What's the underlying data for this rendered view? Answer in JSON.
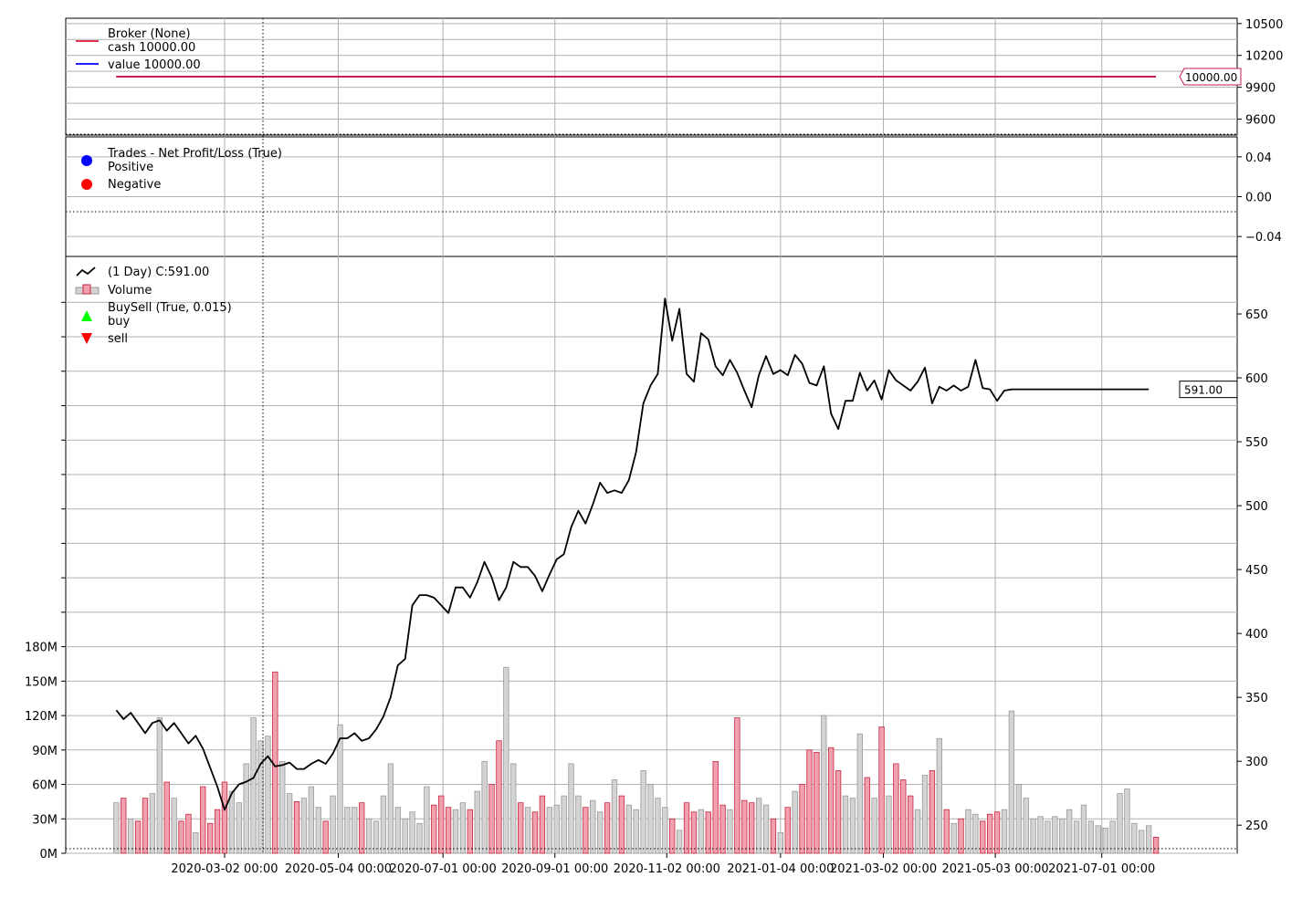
{
  "chart_data": [
    {
      "type": "line",
      "panel": "broker",
      "legend": {
        "placement": "top-left",
        "title": "Broker (None)",
        "entries": [
          {
            "label": "cash 10000.00",
            "color": "#dc143c"
          },
          {
            "label": "value 10000.00",
            "color": "#0000ff"
          }
        ]
      },
      "series": [
        {
          "name": "cash",
          "value": 10000,
          "color": "#dc143c"
        },
        {
          "name": "value",
          "value": 10000,
          "color": "#0000ff"
        }
      ],
      "last_value_label": "10000.00",
      "ylim": [
        9450,
        10550
      ],
      "yticks": [
        9600,
        9900,
        10200,
        10500
      ],
      "ytick_labels": [
        "9600",
        "9900",
        "10200",
        "10500"
      ],
      "grid": true
    },
    {
      "type": "scatter",
      "panel": "trades",
      "legend": {
        "placement": "top-left",
        "title": "Trades - Net Profit/Loss (True)",
        "entries": [
          {
            "label": "Positive",
            "color": "#0000ff"
          },
          {
            "label": "Negative",
            "color": "#ff0000"
          }
        ]
      },
      "series": [],
      "ylim": [
        -0.06,
        0.06
      ],
      "yticks": [
        0.04,
        0.0,
        -0.04
      ],
      "ytick_labels": [
        "0.04",
        "0.00",
        "−0.04"
      ],
      "grid": true
    },
    {
      "type": "line",
      "panel": "price",
      "legend": {
        "placement": "top-left",
        "entries": [
          {
            "label": " (1 Day) C:591.00",
            "color": "#000000",
            "kind": "line"
          },
          {
            "label": "Volume",
            "color": "#e88c9c",
            "kind": "bar"
          },
          {
            "label": "BuySell (True, 0.015)",
            "color": "#00ff00",
            "kind": "marker-up"
          },
          {
            "label": "buy",
            "color": "#00ff00",
            "kind": "none"
          },
          {
            "label": "sell",
            "color": "#ff0000",
            "kind": "marker-down"
          }
        ]
      },
      "x_dates": [
        "2020-01-02",
        "2020-01-06",
        "2020-01-10",
        "2020-01-14",
        "2020-01-18",
        "2020-01-22",
        "2020-01-26",
        "2020-01-30",
        "2020-02-03",
        "2020-02-07",
        "2020-02-11",
        "2020-02-15",
        "2020-02-19",
        "2020-02-23",
        "2020-02-27",
        "2020-03-02",
        "2020-03-06",
        "2020-03-10",
        "2020-03-14",
        "2020-03-18",
        "2020-03-22",
        "2020-03-26",
        "2020-03-30",
        "2020-04-03",
        "2020-04-07",
        "2020-04-11",
        "2020-04-15",
        "2020-04-19",
        "2020-04-23",
        "2020-04-27",
        "2020-05-01",
        "2020-05-05",
        "2020-05-09",
        "2020-05-13",
        "2020-05-17",
        "2020-05-21",
        "2020-05-25",
        "2020-05-29",
        "2020-06-02",
        "2020-06-06",
        "2020-06-10",
        "2020-06-14",
        "2020-06-18",
        "2020-06-22",
        "2020-06-26",
        "2020-06-30",
        "2020-07-04",
        "2020-07-08",
        "2020-07-12",
        "2020-07-16",
        "2020-07-20",
        "2020-07-24",
        "2020-07-28",
        "2020-08-01",
        "2020-08-05",
        "2020-08-09",
        "2020-08-13",
        "2020-08-17",
        "2020-08-21",
        "2020-08-25",
        "2020-08-29",
        "2020-09-02",
        "2020-09-06",
        "2020-09-10",
        "2020-09-14",
        "2020-09-18",
        "2020-09-22",
        "2020-09-26",
        "2020-09-30",
        "2020-10-04",
        "2020-10-08",
        "2020-10-12",
        "2020-10-16",
        "2020-10-20",
        "2020-10-24",
        "2020-10-28",
        "2020-11-01",
        "2020-11-05",
        "2020-11-09",
        "2020-11-13",
        "2020-11-17",
        "2020-11-21",
        "2020-11-25",
        "2020-11-29",
        "2020-12-03",
        "2020-12-07",
        "2020-12-11",
        "2020-12-15",
        "2020-12-19",
        "2020-12-23",
        "2020-12-27",
        "2020-12-31",
        "2021-01-04",
        "2021-01-08",
        "2021-01-12",
        "2021-01-16",
        "2021-01-20",
        "2021-01-24",
        "2021-01-28",
        "2021-02-01",
        "2021-02-05",
        "2021-02-09",
        "2021-02-13",
        "2021-02-17",
        "2021-02-21",
        "2021-02-25",
        "2021-03-01",
        "2021-03-05",
        "2021-03-09",
        "2021-03-13",
        "2021-03-17",
        "2021-03-21",
        "2021-03-25",
        "2021-03-29",
        "2021-04-02",
        "2021-04-06",
        "2021-04-10",
        "2021-04-14",
        "2021-04-18",
        "2021-04-22",
        "2021-04-26",
        "2021-04-30",
        "2021-05-04",
        "2021-05-08",
        "2021-05-12",
        "2021-05-16",
        "2021-05-20",
        "2021-05-24",
        "2021-05-28",
        "2021-06-01",
        "2021-06-05",
        "2021-06-09",
        "2021-06-13",
        "2021-06-17",
        "2021-06-21",
        "2021-06-25",
        "2021-06-29",
        "2021-07-03",
        "2021-07-07",
        "2021-07-11",
        "2021-07-15",
        "2021-07-19",
        "2021-07-23",
        "2021-07-27",
        "2021-07-31"
      ],
      "series": [
        {
          "name": "C",
          "color": "#000000",
          "values": [
            340,
            333,
            338,
            330,
            322,
            330,
            332,
            324,
            330,
            322,
            314,
            320,
            310,
            295,
            280,
            262,
            275,
            282,
            284,
            287,
            298,
            304,
            296,
            297,
            299,
            294,
            294,
            298,
            301,
            298,
            306,
            318,
            318,
            322,
            316,
            318,
            325,
            335,
            350,
            375,
            380,
            422,
            430,
            430,
            428,
            422,
            416,
            436,
            436,
            428,
            440,
            456,
            444,
            426,
            436,
            456,
            452,
            452,
            445,
            433,
            446,
            458,
            462,
            483,
            496,
            486,
            501,
            518,
            510,
            512,
            510,
            520,
            542,
            580,
            594,
            603,
            662,
            629,
            654,
            603,
            597,
            635,
            630,
            609,
            602,
            614,
            604,
            590,
            577,
            602,
            617,
            603,
            606,
            602,
            618,
            611,
            596,
            594,
            609,
            572,
            560,
            582,
            582,
            604,
            590,
            598,
            583,
            606,
            598,
            594,
            590,
            597,
            608,
            580,
            593,
            590,
            594,
            590,
            593,
            614,
            592,
            591,
            582,
            590,
            591,
            591,
            591,
            591,
            591,
            591,
            591,
            591,
            591,
            591,
            591,
            591,
            591,
            591,
            591,
            591,
            591,
            591,
            591,
            591
          ]
        },
        {
          "name": "Volume",
          "color": "#e88c9c",
          "values": [
            44,
            48,
            30,
            28,
            48,
            52,
            118,
            62,
            48,
            28,
            34,
            18,
            58,
            26,
            38,
            62,
            54,
            44,
            78,
            118,
            98,
            102,
            158,
            80,
            52,
            45,
            48,
            58,
            40,
            28,
            50,
            112,
            40,
            40,
            44,
            30,
            28,
            50,
            78,
            40,
            30,
            36,
            26,
            58,
            42,
            50,
            40,
            38,
            44,
            38,
            54,
            80,
            60,
            98,
            162,
            78,
            44,
            40,
            36,
            50,
            40,
            42,
            50,
            78,
            50,
            40,
            46,
            36,
            44,
            64,
            50,
            42,
            38,
            72,
            60,
            48,
            40,
            30,
            20,
            44,
            36,
            38,
            36,
            80,
            42,
            38,
            118,
            46,
            44,
            48,
            42,
            30,
            18,
            40,
            54,
            60,
            90,
            88,
            120,
            92,
            72,
            50,
            48,
            104,
            66,
            48,
            110,
            50,
            78,
            64,
            50,
            38,
            68,
            72,
            100,
            38,
            26,
            30,
            38,
            34,
            28,
            34,
            36,
            38,
            124,
            60,
            48,
            30,
            32,
            28,
            32,
            30,
            38,
            28,
            42,
            28,
            24,
            22,
            28,
            52,
            56,
            26,
            20,
            24,
            14
          ]
        }
      ],
      "last_value_label": "591.00",
      "ylim_price": [
        228,
        695
      ],
      "ylim_volume": [
        0,
        520
      ],
      "yticks_price": [
        250,
        300,
        350,
        400,
        450,
        500,
        550,
        600,
        650
      ],
      "ytick_labels_price": [
        "250",
        "300",
        "350",
        "400",
        "450",
        "500",
        "550",
        "600",
        "650"
      ],
      "yticks_volume": [
        0,
        30,
        60,
        90,
        120,
        150,
        180
      ],
      "ytick_labels_volume": [
        "0M",
        "30M",
        "60M",
        "90M",
        "120M",
        "150M",
        "180M"
      ],
      "xticks": [
        "2020-03-02",
        "2020-05-04",
        "2020-07-01",
        "2020-09-01",
        "2020-11-02",
        "2021-01-04",
        "2021-03-02",
        "2021-05-03",
        "2021-07-01"
      ],
      "xtick_labels": [
        "2020-03-02 00:00",
        "2020-05-04 00:00",
        "2020-07-01 00:00",
        "2020-09-01 00:00",
        "2020-11-02 00:00",
        "2021-01-04 00:00",
        "2021-03-02 00:00",
        "2021-05-03 00:00",
        "2021-07-01 00:00"
      ],
      "grid": true
    }
  ]
}
